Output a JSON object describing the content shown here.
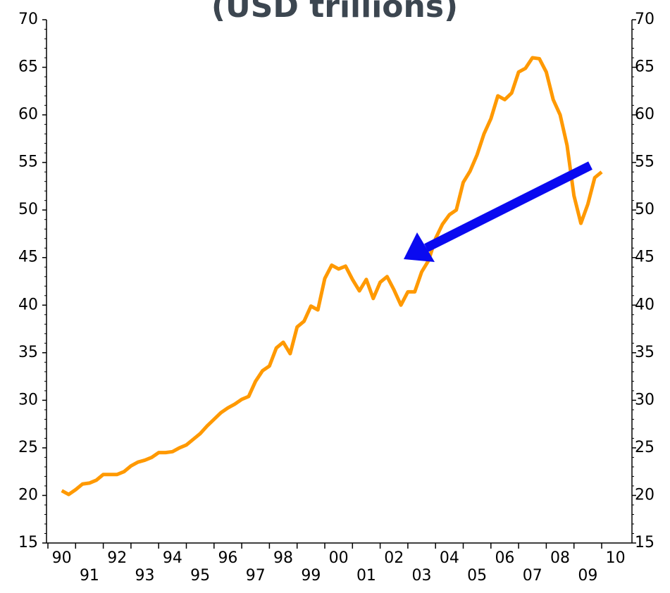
{
  "chart_data": {
    "type": "line",
    "title": "(USD trillions)",
    "x": [
      1990.5,
      1990.75,
      1991,
      1991.25,
      1991.5,
      1991.75,
      1992,
      1992.25,
      1992.5,
      1992.75,
      1993,
      1993.25,
      1993.5,
      1993.75,
      1994,
      1994.25,
      1994.5,
      1994.75,
      1995,
      1995.25,
      1995.5,
      1995.75,
      1996,
      1996.25,
      1996.5,
      1996.75,
      1997,
      1997.25,
      1997.5,
      1997.75,
      1998,
      1998.25,
      1998.5,
      1998.75,
      1999,
      1999.25,
      1999.5,
      1999.75,
      2000,
      2000.25,
      2000.5,
      2000.75,
      2001,
      2001.25,
      2001.5,
      2001.75,
      2002,
      2002.25,
      2002.5,
      2002.75,
      2003,
      2003.25,
      2003.5,
      2003.75,
      2004,
      2004.25,
      2004.5,
      2004.75,
      2005,
      2005.25,
      2005.5,
      2005.75,
      2006,
      2006.25,
      2006.5,
      2006.75,
      2007,
      2007.25,
      2007.5,
      2007.75,
      2008,
      2008.25,
      2008.5,
      2008.75,
      2009,
      2009.25,
      2009.5,
      2009.75,
      2010
    ],
    "series": [
      {
        "color": "#ff9900",
        "values": [
          20.5,
          20.1,
          20.6,
          21.2,
          21.3,
          21.6,
          22.2,
          22.2,
          22.2,
          22.5,
          23.1,
          23.5,
          23.7,
          24.0,
          24.5,
          24.5,
          24.6,
          25.0,
          25.3,
          25.9,
          26.5,
          27.3,
          28.0,
          28.7,
          29.2,
          29.6,
          30.1,
          30.4,
          32.0,
          33.1,
          33.6,
          35.5,
          36.1,
          34.9,
          37.7,
          38.3,
          39.9,
          39.5,
          42.8,
          44.2,
          43.8,
          44.1,
          42.7,
          41.5,
          42.7,
          40.7,
          42.4,
          43.0,
          41.6,
          40.0,
          41.4,
          41.4,
          43.5,
          44.7,
          47.0,
          48.5,
          49.5,
          50.0,
          52.9,
          54.1,
          55.8,
          58.0,
          59.6,
          62.0,
          61.6,
          62.3,
          64.5,
          64.9,
          66.0,
          65.9,
          64.5,
          61.6,
          60.0,
          56.8,
          51.5,
          48.6,
          50.6,
          53.4,
          54.0
        ]
      }
    ],
    "xlim": [
      1990,
      2010
    ],
    "xticks": [
      {
        "value": 1990,
        "label": "90"
      },
      {
        "value": 1991,
        "label": "91"
      },
      {
        "value": 1992,
        "label": "92"
      },
      {
        "value": 1993,
        "label": "93"
      },
      {
        "value": 1994,
        "label": "94"
      },
      {
        "value": 1995,
        "label": "95"
      },
      {
        "value": 1996,
        "label": "96"
      },
      {
        "value": 1997,
        "label": "97"
      },
      {
        "value": 1998,
        "label": "98"
      },
      {
        "value": 1999,
        "label": "99"
      },
      {
        "value": 2000,
        "label": "00"
      },
      {
        "value": 2001,
        "label": "01"
      },
      {
        "value": 2002,
        "label": "02"
      },
      {
        "value": 2003,
        "label": "03"
      },
      {
        "value": 2004,
        "label": "04"
      },
      {
        "value": 2005,
        "label": "05"
      },
      {
        "value": 2006,
        "label": "06"
      },
      {
        "value": 2007,
        "label": "07"
      },
      {
        "value": 2008,
        "label": "08"
      },
      {
        "value": 2009,
        "label": "09"
      },
      {
        "value": 2010,
        "label": "10"
      }
    ],
    "ylim": [
      15,
      70
    ],
    "yticks": [
      15,
      20,
      25,
      30,
      35,
      40,
      45,
      50,
      55,
      60,
      65,
      70
    ],
    "grid": false
  }
}
